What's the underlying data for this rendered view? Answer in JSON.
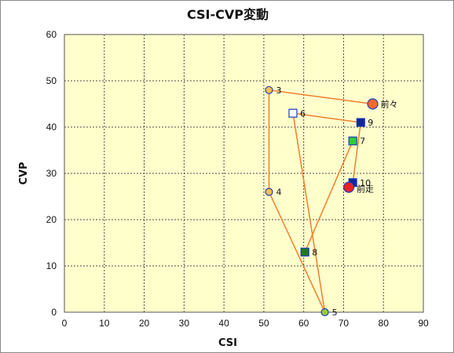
{
  "chart_data": {
    "type": "scatter",
    "title": "CSI-CVP変動",
    "xlabel": "CSI",
    "ylabel": "CVP",
    "xlim": [
      0,
      90
    ],
    "ylim": [
      0,
      60
    ],
    "x_ticks": [
      0,
      10,
      20,
      30,
      40,
      50,
      60,
      70,
      80,
      90
    ],
    "y_ticks": [
      0,
      10,
      20,
      30,
      40,
      50,
      60
    ],
    "grid": true,
    "plot_background": "#ffffcc",
    "line_color": "#ef7f2a",
    "path_order": [
      "前々",
      "3",
      "4",
      "5",
      "6",
      "9",
      "10"
    ],
    "path_order_2": [
      "7",
      "8"
    ],
    "points": [
      {
        "label": "前々",
        "x": 77.3,
        "y": 45,
        "marker": "circle-large",
        "fill": "#f26a2c",
        "stroke": "#1f3fbf"
      },
      {
        "label": "3",
        "x": 51.3,
        "y": 48,
        "marker": "circle",
        "fill": "#f8c048",
        "stroke": "#1f3fbf"
      },
      {
        "label": "4",
        "x": 51.3,
        "y": 26,
        "marker": "circle",
        "fill": "#f8c048",
        "stroke": "#1f3fbf"
      },
      {
        "label": "5",
        "x": 65.3,
        "y": 0,
        "marker": "circle",
        "fill": "#99cc33",
        "stroke": "#1f3fbf"
      },
      {
        "label": "6",
        "x": 57.3,
        "y": 43,
        "marker": "square",
        "fill": "#ffffff",
        "stroke": "#1f3fbf"
      },
      {
        "label": "7",
        "x": 72.3,
        "y": 37,
        "marker": "square",
        "fill": "#33cc33",
        "stroke": "#1f3fbf"
      },
      {
        "label": "8",
        "x": 60.3,
        "y": 13,
        "marker": "square",
        "fill": "#227722",
        "stroke": "#1f3fbf"
      },
      {
        "label": "9",
        "x": 74.3,
        "y": 41,
        "marker": "square",
        "fill": "#13239a",
        "stroke": "#1f3fbf"
      },
      {
        "label": "10",
        "x": 72.3,
        "y": 28,
        "marker": "square",
        "fill": "#13239a",
        "stroke": "#1f3fbf"
      },
      {
        "label": "前走",
        "x": 71.3,
        "y": 27,
        "marker": "circle-large",
        "fill": "#e8202a",
        "stroke": "#1f3fbf"
      }
    ]
  }
}
